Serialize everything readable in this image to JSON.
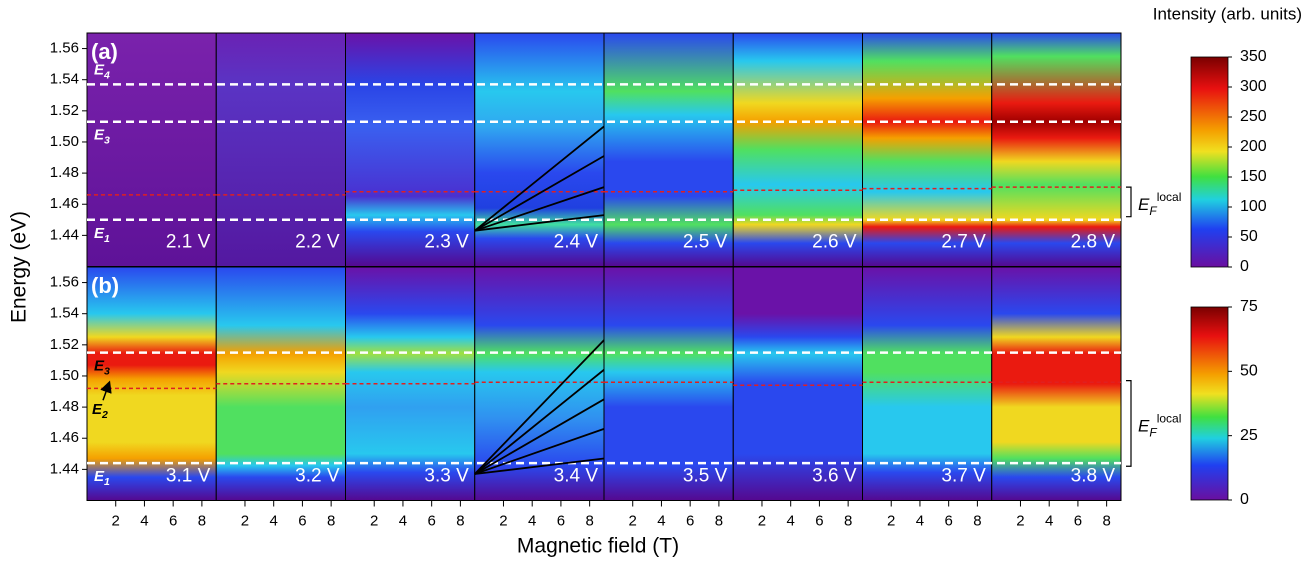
{
  "chart_data": {
    "type": "heatmap",
    "xlabel": "Magnetic field (T)",
    "ylabel": "Energy (eV)",
    "xlim": [
      0,
      9
    ],
    "xticks": [
      2,
      4,
      6,
      8
    ],
    "ylim": [
      1.42,
      1.57
    ],
    "yticks": [
      1.44,
      1.46,
      1.48,
      {
        "value": 1.5,
        "label": "1.50"
      },
      1.52,
      1.54,
      1.56
    ],
    "colorbar_title": "Intensity (arb. units)",
    "rows": [
      {
        "label": "(a)",
        "voltages": [
          "2.1 V",
          "2.2 V",
          "2.3 V",
          "2.4 V",
          "2.5 V",
          "2.6 V",
          "2.7 V",
          "2.8 V"
        ],
        "colorbar": {
          "lim": [
            0,
            350
          ],
          "ticks": [
            0,
            50,
            100,
            150,
            200,
            250,
            300,
            350
          ]
        },
        "levels": [
          {
            "symbol": "E",
            "index": "4",
            "energy": 1.537,
            "label_color": "#ffffff"
          },
          {
            "symbol": "E",
            "index": "3",
            "energy": 1.513,
            "label_color": "#ffffff"
          },
          {
            "symbol": "E",
            "index": "1",
            "energy": 1.45,
            "label_color": "#ffffff"
          }
        ],
        "fermi": {
          "color": "#e02020",
          "energies": [
            1.466,
            1.466,
            1.468,
            1.468,
            1.468,
            1.469,
            1.47,
            1.471
          ]
        },
        "bracket": {
          "symbol": "E",
          "sub": "F",
          "sup": "local",
          "range": [
            1.452,
            1.471
          ]
        },
        "fan": {
          "panel": 3,
          "color": "#000000",
          "origin": [
            0,
            1.443
          ],
          "ends": [
            1.51,
            1.491,
            1.471,
            1.453
          ]
        }
      },
      {
        "label": "(b)",
        "voltages": [
          "3.1 V",
          "3.2 V",
          "3.3 V",
          "3.4 V",
          "3.5 V",
          "3.6 V",
          "3.7 V",
          "3.8 V"
        ],
        "colorbar": {
          "lim": [
            0,
            75
          ],
          "ticks": [
            0,
            25,
            50,
            75
          ]
        },
        "levels": [
          {
            "symbol": "E",
            "index": "3",
            "energy": 1.515,
            "label_color": "#000000"
          },
          {
            "symbol": "E",
            "index": "1",
            "energy": 1.444,
            "label_color": "#ffffff"
          }
        ],
        "arrow_label": {
          "symbol": "E",
          "index": "2",
          "energy": 1.496,
          "label_color": "#000000"
        },
        "fermi": {
          "color": "#e02020",
          "energies": [
            1.492,
            1.495,
            1.495,
            1.496,
            1.496,
            1.494,
            1.496,
            1.496
          ]
        },
        "bracket": {
          "symbol": "E",
          "sub": "F",
          "sup": "local",
          "range": [
            1.442,
            1.497
          ]
        },
        "fan": {
          "panel": 3,
          "color": "#000000",
          "origin": [
            0,
            1.437
          ],
          "ends": [
            1.523,
            1.504,
            1.485,
            1.466,
            1.447
          ]
        }
      }
    ]
  }
}
